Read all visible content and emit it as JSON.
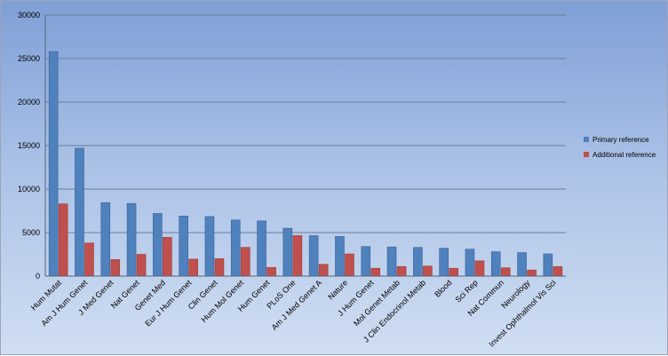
{
  "chart_data": {
    "type": "bar",
    "title": "",
    "xlabel": "",
    "ylabel": "",
    "ylim": [
      0,
      30000
    ],
    "yticks": [
      "0",
      "5000",
      "10000",
      "15000",
      "20000",
      "25000",
      "30000"
    ],
    "grid": true,
    "legend_position": "right",
    "categories": [
      "Hum Mutat",
      "Am J Hum Genet",
      "J Med Genet",
      "Nat Genet",
      "Genet Med",
      "Eur J Hum Genet",
      "Clin Genet",
      "Hum Mol Genet",
      "Hum Genet",
      "PLoS One",
      "Am J Med Genet A",
      "Nature",
      "J Hum Genet",
      "Mol Genet Metab",
      "J Clin Endocrinol Metab",
      "Blood",
      "Sci Rep",
      "Nat Commun",
      "Neurology",
      "Invest Ophthalmol Vis Sci"
    ],
    "series": [
      {
        "name": "Primary reference",
        "color": "#4f81bd",
        "values": [
          25800,
          14700,
          8450,
          8350,
          7200,
          6900,
          6850,
          6450,
          6350,
          5500,
          4650,
          4550,
          3400,
          3350,
          3300,
          3200,
          3100,
          2800,
          2700,
          2550
        ]
      },
      {
        "name": "Additional reference",
        "color": "#c0504d",
        "values": [
          8300,
          3800,
          1900,
          2500,
          4450,
          1950,
          2000,
          3300,
          1000,
          4650,
          1350,
          2550,
          900,
          1100,
          1150,
          900,
          1750,
          950,
          700,
          1100
        ]
      }
    ]
  }
}
